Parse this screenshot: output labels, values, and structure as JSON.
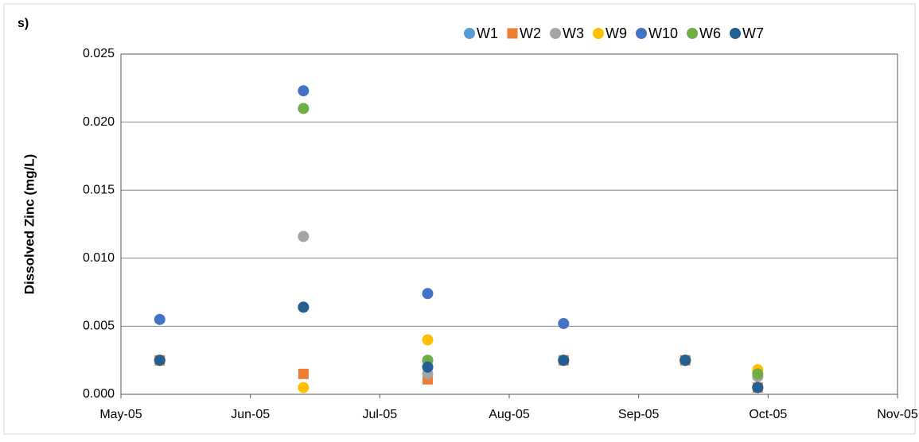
{
  "chart_data": {
    "type": "scatter",
    "panel_label": "s)",
    "y_label": "Dissolved Zinc (mg/L)",
    "x": [
      0.3,
      1.41,
      2.37,
      3.42,
      4.36,
      4.92
    ],
    "xlim": [
      0,
      6
    ],
    "xticks": [
      {
        "value": 0,
        "label": "May-05"
      },
      {
        "value": 1,
        "label": "Jun-05"
      },
      {
        "value": 2,
        "label": "Jul-05"
      },
      {
        "value": 3,
        "label": "Aug-05"
      },
      {
        "value": 4,
        "label": "Sep-05"
      },
      {
        "value": 5,
        "label": "Oct-05"
      },
      {
        "value": 6,
        "label": "Nov-05"
      }
    ],
    "ylim": [
      0,
      0.025
    ],
    "yticks": [
      {
        "value": 0,
        "label": "0.000"
      },
      {
        "value": 0.005,
        "label": "0.005"
      },
      {
        "value": 0.01,
        "label": "0.010"
      },
      {
        "value": 0.015,
        "label": "0.015"
      },
      {
        "value": 0.02,
        "label": "0.020"
      },
      {
        "value": 0.025,
        "label": "0.025"
      }
    ],
    "grid": true,
    "legend": "top",
    "series": [
      {
        "name": "W1",
        "color": "#5b9bd5",
        "marker": "circle",
        "values": [
          0.0025,
          0.0064,
          0.0025,
          0.0025,
          0.0025,
          0.0005
        ]
      },
      {
        "name": "W2",
        "color": "#ed7d31",
        "marker": "square",
        "values": [
          0.0025,
          0.0015,
          0.0011,
          0.0025,
          0.0025,
          0.0005
        ]
      },
      {
        "name": "W3",
        "color": "#a5a5a5",
        "marker": "circle",
        "values": [
          0.0025,
          0.0116,
          0.0015,
          0.0025,
          0.0025,
          0.0013
        ]
      },
      {
        "name": "W9",
        "color": "#ffc000",
        "marker": "circle",
        "values": [
          0.0025,
          0.0005,
          0.004,
          0.0025,
          0.0025,
          0.0018
        ]
      },
      {
        "name": "W10",
        "color": "#4472c4",
        "marker": "circle",
        "values": [
          0.0055,
          0.0223,
          0.0074,
          0.0052,
          0.0025,
          0.0005
        ]
      },
      {
        "name": "W6",
        "color": "#70ad47",
        "marker": "circle",
        "values": [
          0.0025,
          0.021,
          0.0025,
          0.0025,
          0.0025,
          0.0015
        ]
      },
      {
        "name": "W7",
        "color": "#255e91",
        "marker": "circle",
        "values": [
          0.0025,
          0.0064,
          0.002,
          0.0025,
          0.0025,
          0.0005
        ]
      }
    ]
  }
}
